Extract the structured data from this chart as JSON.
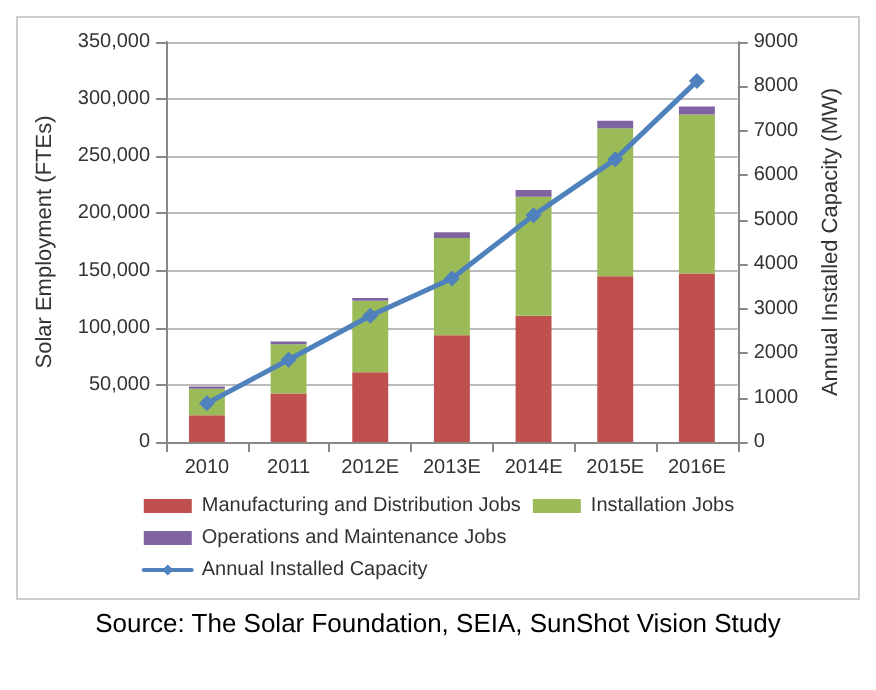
{
  "chart_data": {
    "type": "bar",
    "stacked": true,
    "categories": [
      "2010",
      "2011",
      "2012E",
      "2013E",
      "2014E",
      "2015E",
      "2016E"
    ],
    "ylabel": "Solar Employment (FTEs)",
    "y2label": "Annual Installed Capacity (MW)",
    "ylim": [
      0,
      350000
    ],
    "yticks": [
      {
        "value": 0,
        "label": "0"
      },
      {
        "value": 50000,
        "label": "50,000"
      },
      {
        "value": 100000,
        "label": "100,000"
      },
      {
        "value": 150000,
        "label": "150,000"
      },
      {
        "value": 200000,
        "label": "200,000"
      },
      {
        "value": 250000,
        "label": "250,000"
      },
      {
        "value": 300000,
        "label": "300,000"
      },
      {
        "value": 350000,
        "label": "350,000"
      }
    ],
    "y2lim": [
      0,
      9000
    ],
    "y2ticks": [
      0,
      1000,
      2000,
      3000,
      4000,
      5000,
      6000,
      7000,
      8000,
      9000
    ],
    "grid": "y",
    "legend": "bottom",
    "marker": "diamond",
    "series": [
      {
        "name": "Manufacturing and Distribution Jobs",
        "color": "#c0504d",
        "values": [
          23500,
          42500,
          61000,
          93500,
          110500,
          145000,
          147500
        ]
      },
      {
        "name": "Installation Jobs",
        "color": "#9bbb59",
        "values": [
          23000,
          43000,
          62500,
          85000,
          104000,
          129500,
          139000
        ]
      },
      {
        "name": "Operations and Maintenance Jobs",
        "color": "#8064a2",
        "values": [
          2000,
          2500,
          2500,
          5000,
          6000,
          6500,
          7000
        ]
      },
      {
        "name": "Annual Installed Capacity",
        "type": "line",
        "axis": "y2",
        "color": "#4f81bd",
        "values": [
          870,
          1850,
          2840,
          3680,
          5100,
          6360,
          8120
        ]
      }
    ],
    "annotations": [
      "Source: The Solar Foundation, SEIA, SunShot Vision Study"
    ]
  }
}
